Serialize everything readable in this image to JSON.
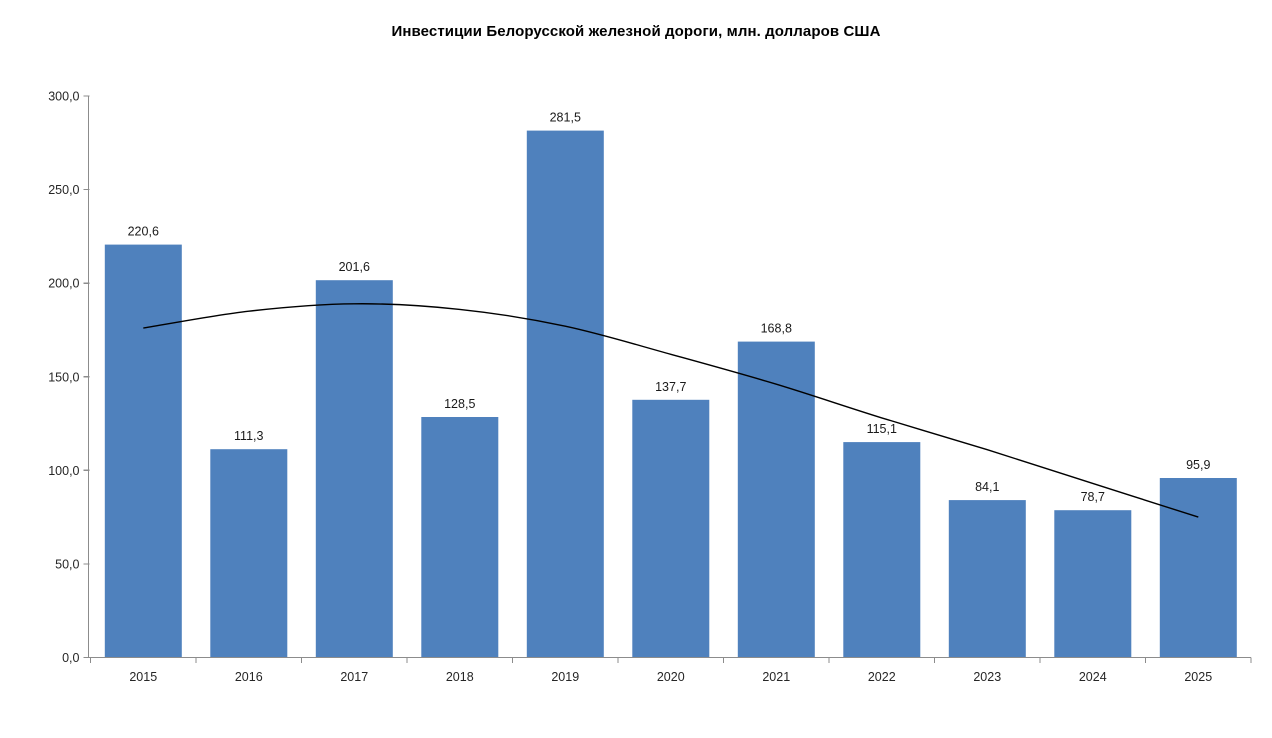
{
  "chart_data": {
    "type": "bar",
    "title": "Инвестиции Белорусской железной дороги, млн. долларов США",
    "categories": [
      "2015",
      "2016",
      "2017",
      "2018",
      "2019",
      "2020",
      "2021",
      "2022",
      "2023",
      "2024",
      "2025"
    ],
    "values": [
      220.6,
      111.3,
      201.6,
      128.5,
      281.5,
      137.7,
      168.8,
      115.1,
      84.1,
      78.7,
      95.9
    ],
    "data_labels": [
      "220,6",
      "111,3",
      "201,6",
      "128,5",
      "281,5",
      "137,7",
      "168,8",
      "115,1",
      "84,1",
      "78,7",
      "95,9"
    ],
    "xlabel": "",
    "ylabel": "",
    "y_axis": {
      "min": 0,
      "max": 300,
      "step": 50,
      "tick_labels": [
        "0,0",
        "50,0",
        "100,0",
        "150,0",
        "200,0",
        "250,0",
        "300,0"
      ]
    },
    "grid": false,
    "legend": false,
    "trendline": {
      "description": "smooth polynomial trend curve over yearly bar centers",
      "values_estimated": [
        176,
        185,
        189,
        186,
        177,
        162,
        146,
        128,
        111,
        93,
        75
      ],
      "color": "#000000"
    },
    "colors": {
      "bar_fill": "#4F81BD",
      "axis_line": "#8C8C8C",
      "tick_label": "#262626",
      "data_label": "#1A1A1A",
      "background": "#FFFFFF"
    }
  }
}
